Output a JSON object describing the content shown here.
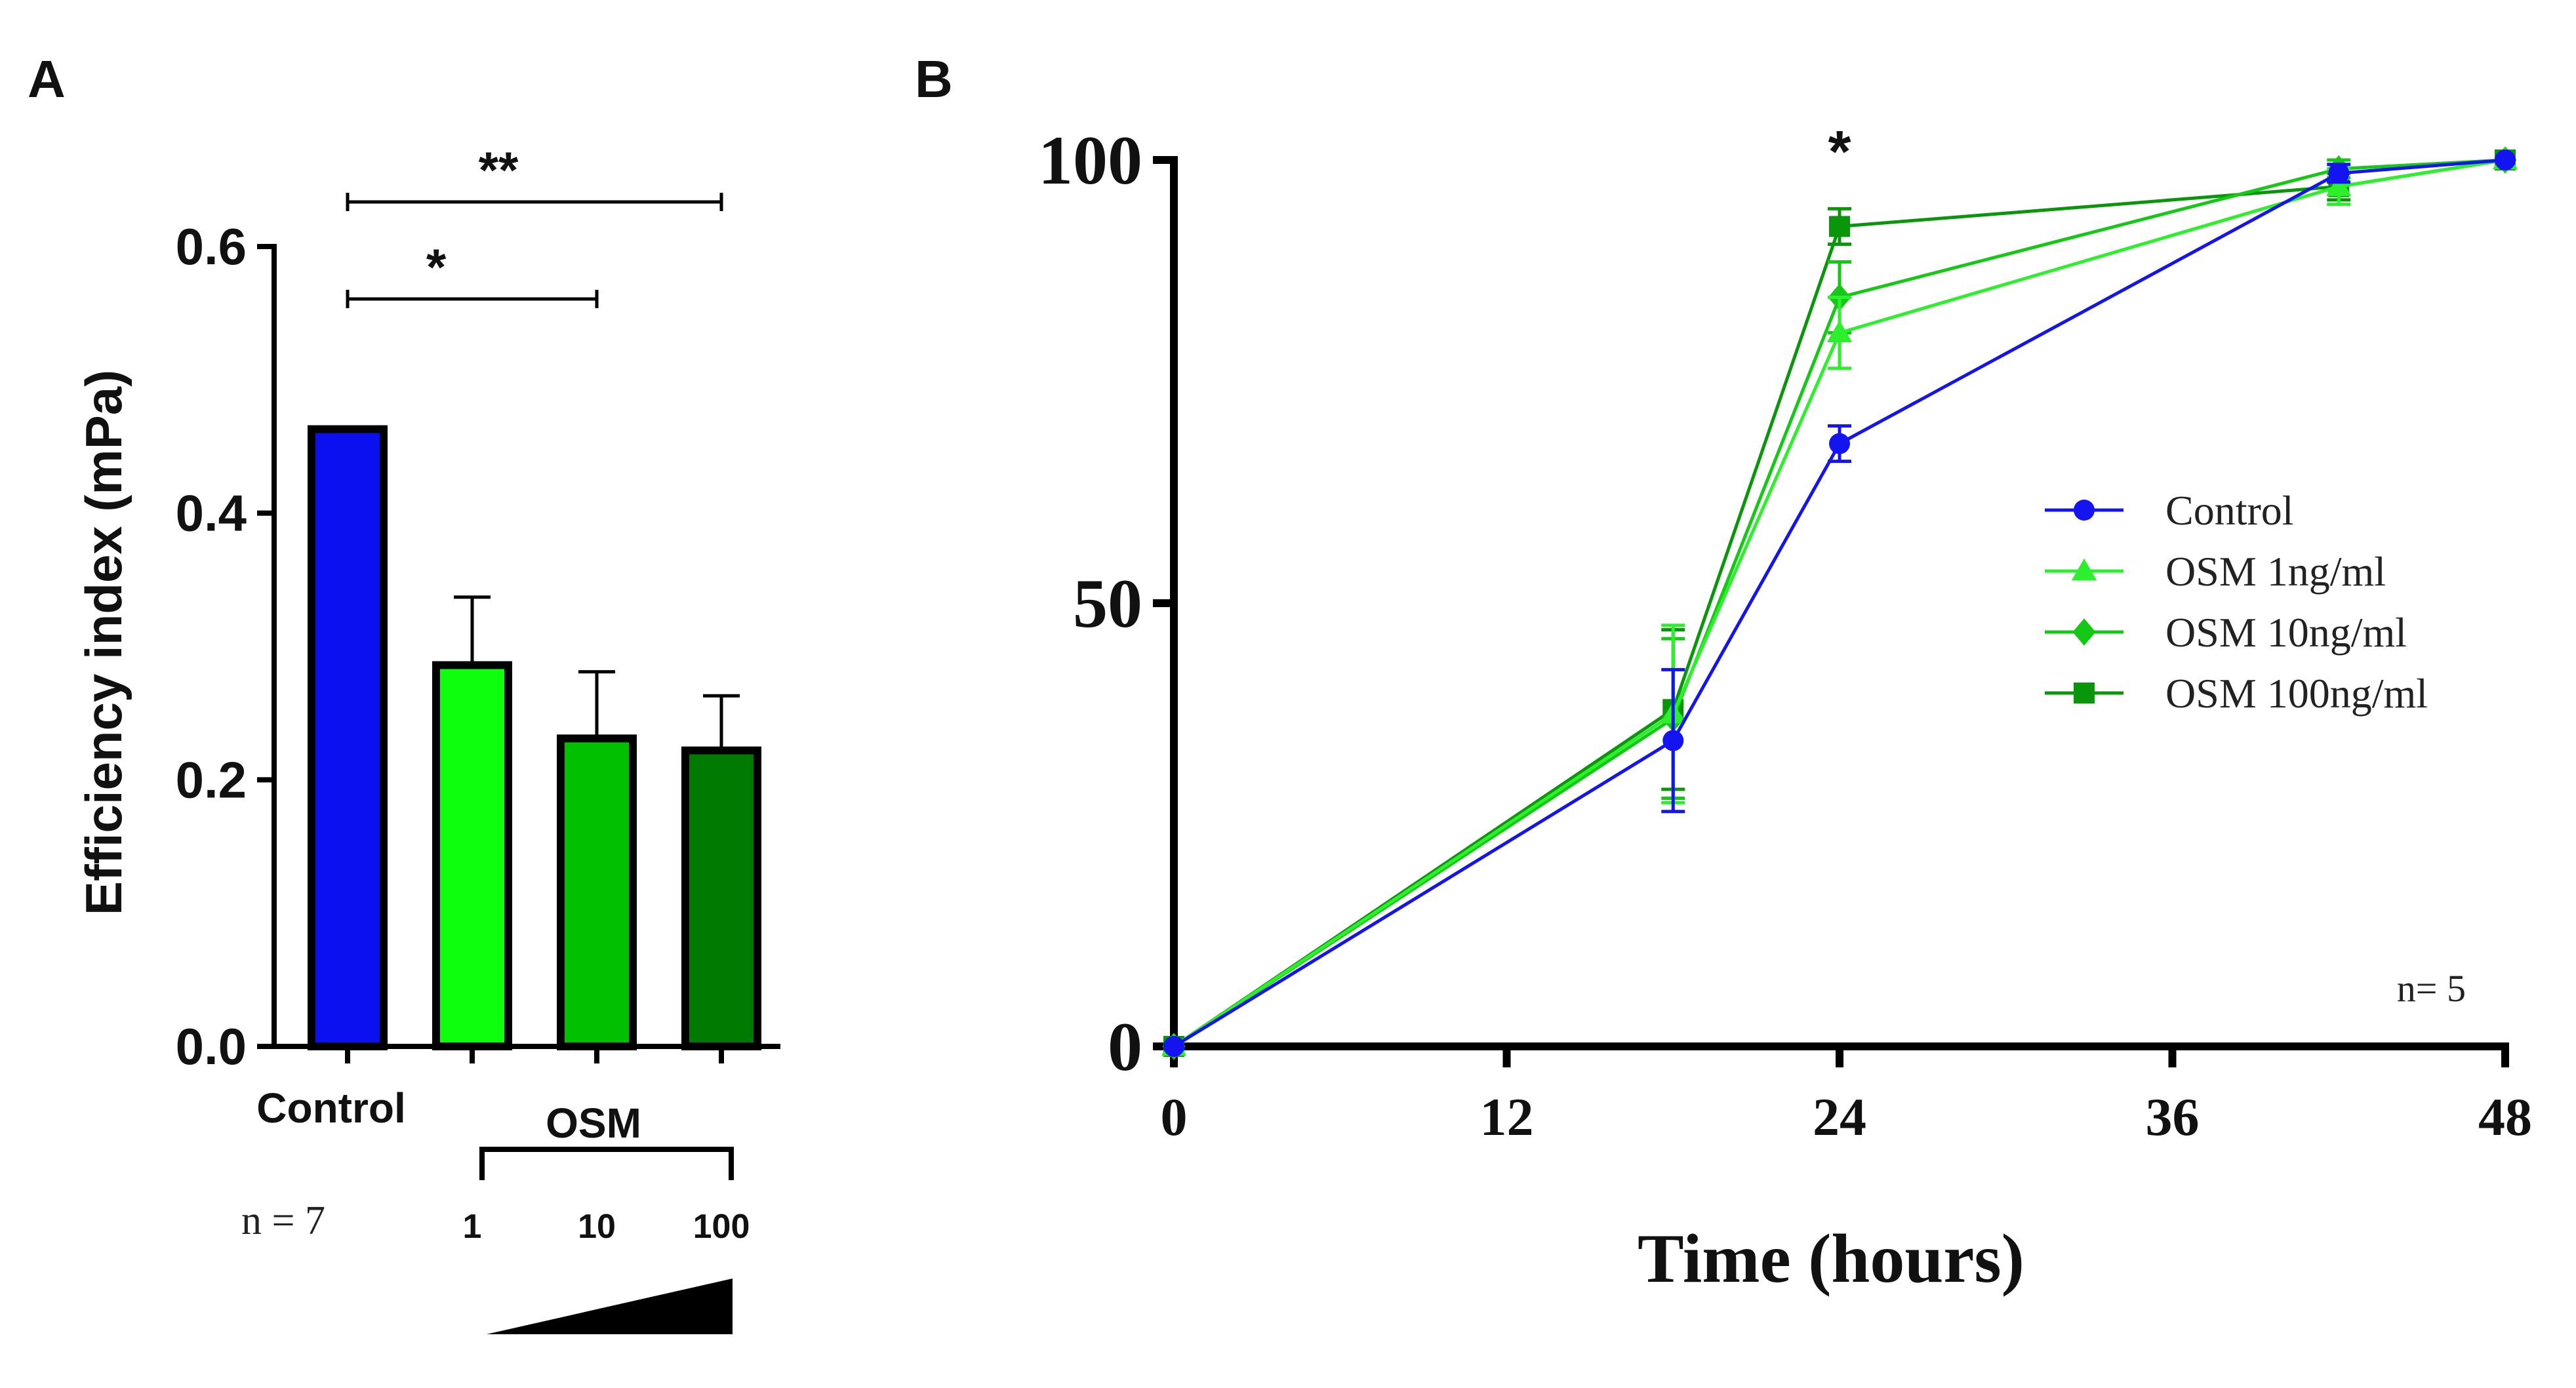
{
  "panel_a_label": "A",
  "panel_b_label": "B",
  "chart_data": [
    {
      "type": "bar",
      "panel": "A",
      "ylabel": "Efficiency index (mPa)",
      "ylim": [
        0.0,
        0.6
      ],
      "yticks": [
        0.0,
        0.2,
        0.4,
        0.6
      ],
      "ytick_labels": [
        "0.0",
        "0.2",
        "0.4",
        "0.6"
      ],
      "categories": [
        "Control",
        "1",
        "10",
        "100"
      ],
      "values": [
        0.463,
        0.286,
        0.231,
        0.222
      ],
      "errors": [
        0.0,
        0.051,
        0.05,
        0.041
      ],
      "colors": [
        "#0a10f0",
        "#0eff0e",
        "#00c000",
        "#007a00"
      ],
      "group_label": "OSM",
      "group_category_labels": [
        "1",
        "10",
        "100"
      ],
      "n_label": "n =  7",
      "significance": [
        {
          "from": 0,
          "to": 2,
          "label": "*"
        },
        {
          "from": 0,
          "to": 3,
          "label": "**"
        }
      ]
    },
    {
      "type": "line",
      "panel": "B",
      "xlabel": "Time (hours)",
      "ylabel": "",
      "xlim": [
        0,
        48
      ],
      "ylim": [
        0,
        100
      ],
      "xticks": [
        0,
        12,
        24,
        36,
        48
      ],
      "xtick_labels": [
        "0",
        "12",
        "24",
        "36",
        "48"
      ],
      "yticks": [
        0,
        50,
        100
      ],
      "ytick_labels": [
        "0",
        "50",
        "100"
      ],
      "n_label": "n= 5",
      "annotation": {
        "x": 24,
        "label": "*"
      },
      "series": [
        {
          "name": "Control",
          "color": "#1414f0",
          "marker": "circle",
          "x": [
            0,
            18,
            24,
            42,
            48
          ],
          "y": [
            0,
            34.5,
            68,
            98.5,
            100
          ],
          "err": [
            0,
            8,
            2,
            1,
            0.5
          ]
        },
        {
          "name": "OSM 1ng/ml",
          "color": "#2cf02c",
          "marker": "triangle",
          "x": [
            0,
            18,
            24,
            42,
            48
          ],
          "y": [
            0,
            37.5,
            80.5,
            97,
            100
          ],
          "err": [
            0,
            10,
            4,
            2,
            0.5
          ]
        },
        {
          "name": "OSM 10ng/ml",
          "color": "#16c816",
          "marker": "diamond",
          "x": [
            0,
            18,
            24,
            42,
            48
          ],
          "y": [
            0,
            37,
            84.5,
            99,
            100
          ],
          "err": [
            0,
            9,
            4,
            1,
            0.5
          ]
        },
        {
          "name": "OSM 100ng/ml",
          "color": "#0a960a",
          "marker": "square",
          "x": [
            0,
            18,
            24,
            42,
            48
          ],
          "y": [
            0,
            38,
            92.5,
            97,
            100
          ],
          "err": [
            0,
            9,
            2,
            1.5,
            0.5
          ]
        }
      ]
    }
  ]
}
